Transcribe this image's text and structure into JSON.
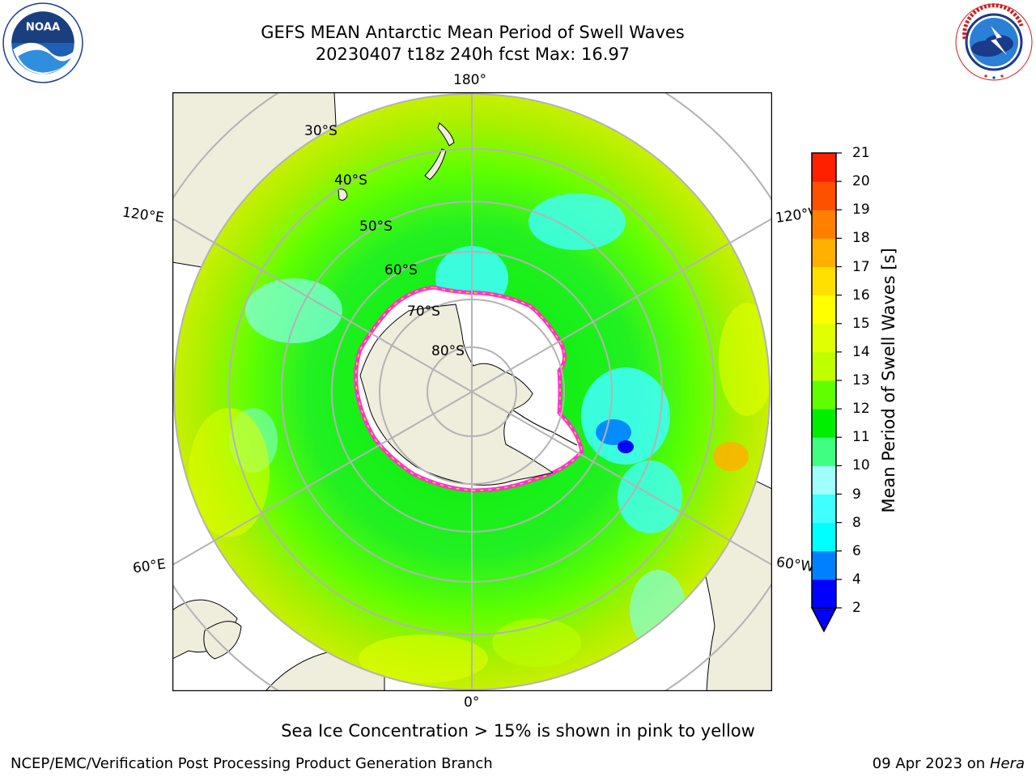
{
  "header": {
    "title_line1": "GEFS MEAN Antarctic Mean Period of Swell Waves",
    "title_line2": "20230407 t18z 240h fcst   Max: 16.97"
  },
  "logos": {
    "left": {
      "name": "noaa-logo",
      "text": "NOAA",
      "ring_text": "NATIONAL OCEANIC AND ATMOSPHERIC ADMINISTRATION · U.S. DEPARTMENT OF COMMERCE"
    },
    "right": {
      "name": "nws-logo",
      "ring_text": "NATIONAL WEATHER SERVICE"
    }
  },
  "map": {
    "projection": "south-polar-stereographic",
    "longitude_labels": {
      "top": "180°",
      "bottom": "0°",
      "upper_left": "120°E",
      "lower_left": "60°E",
      "upper_right": "120°W",
      "lower_right": "60°W"
    },
    "latitude_labels": [
      "30°S",
      "40°S",
      "50°S",
      "60°S",
      "70°S",
      "80°S"
    ],
    "colors": {
      "land": "#efeddc",
      "ice_interior": "#ffffff",
      "ice_edge_pink": "#ff33cc",
      "ice_edge_yellow": "#ffd21e",
      "gridline": "#b3b3b3"
    }
  },
  "colorbar": {
    "label": "Mean Period of Swell Waves [s]",
    "ticks": [
      "2",
      "4",
      "6",
      "8",
      "9",
      "10",
      "11",
      "12",
      "13",
      "14",
      "15",
      "16",
      "17",
      "18",
      "19",
      "20",
      "21"
    ],
    "colors": [
      "#0000ff",
      "#0080ff",
      "#00ffff",
      "#40ffff",
      "#a0ffff",
      "#40ff80",
      "#00ee00",
      "#60ff00",
      "#c0ff00",
      "#e0ff00",
      "#ffff00",
      "#ffe000",
      "#ffb000",
      "#ff8000",
      "#ff5000",
      "#ff2000",
      "#ff0000"
    ],
    "extend": "min",
    "under_color": "#0000ff"
  },
  "note": "Sea Ice Concentration > 15% is shown in pink to yellow",
  "footer": {
    "left": "NCEP/EMC/Verification Post Processing Product Generation Branch",
    "right_prefix": "09 Apr 2023 on ",
    "right_host": "Hera"
  }
}
